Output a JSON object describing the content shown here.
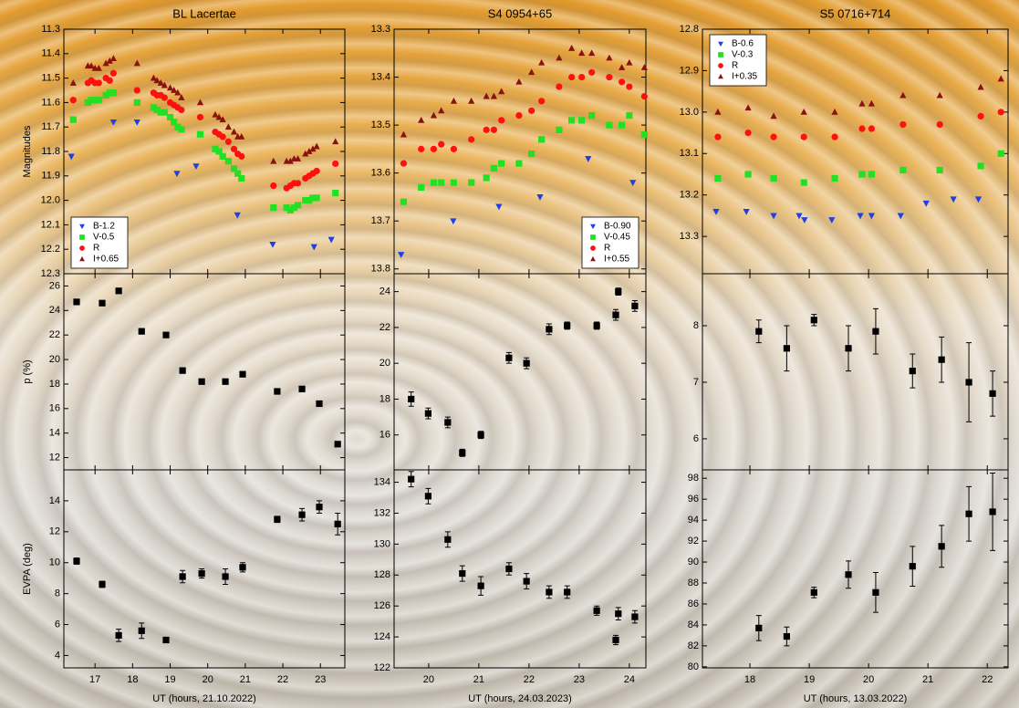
{
  "chart_data": [
    {
      "type": "scatter",
      "title": "BL Lacertae",
      "ylabel": "Magnitudes",
      "xlim": [
        16.17,
        23.65
      ],
      "xticks": [
        17,
        18,
        19,
        20,
        21,
        22,
        23
      ],
      "ylim": [
        12.3,
        11.3
      ],
      "yticks": [
        11.3,
        11.4,
        11.5,
        11.6,
        11.7,
        11.8,
        11.9,
        {
          "value": 12,
          "label": "12.0"
        },
        12.1,
        12.2,
        12.3
      ],
      "legend": "lower left",
      "series": [
        {
          "name": "B-1.2",
          "color": "#1f3fe0",
          "marker": "triangle-down",
          "x": [
            16.37,
            17.49,
            18.12,
            19.18,
            19.69,
            20.79,
            21.73,
            22.83,
            23.29
          ],
          "values": [
            11.82,
            11.68,
            11.68,
            11.89,
            11.86,
            12.06,
            12.18,
            12.19,
            12.16
          ]
        },
        {
          "name": "V-0.5",
          "color": "#22e022",
          "marker": "square",
          "x": [
            16.42,
            16.81,
            16.9,
            17.0,
            17.1,
            17.29,
            17.39,
            17.49,
            18.12,
            18.56,
            18.65,
            18.75,
            18.85,
            19.0,
            19.1,
            19.2,
            19.3,
            19.8,
            20.2,
            20.3,
            20.4,
            20.55,
            20.7,
            20.8,
            20.9,
            21.75,
            22.1,
            22.2,
            22.3,
            22.4,
            22.6,
            22.7,
            22.8,
            22.9,
            23.4
          ],
          "values": [
            11.67,
            11.6,
            11.59,
            11.59,
            11.59,
            11.57,
            11.56,
            11.56,
            11.6,
            11.62,
            11.63,
            11.64,
            11.64,
            11.66,
            11.68,
            11.7,
            11.71,
            11.73,
            11.79,
            11.8,
            11.82,
            11.84,
            11.87,
            11.89,
            11.91,
            12.03,
            12.03,
            12.04,
            12.03,
            12.02,
            12.0,
            12.0,
            11.99,
            11.99,
            11.97
          ]
        },
        {
          "name": "R",
          "color": "#ff1010",
          "marker": "circle",
          "x": [
            16.42,
            16.81,
            16.9,
            17.0,
            17.1,
            17.29,
            17.39,
            17.49,
            18.12,
            18.56,
            18.65,
            18.75,
            18.85,
            19.0,
            19.1,
            19.2,
            19.3,
            19.8,
            20.2,
            20.3,
            20.4,
            20.55,
            20.7,
            20.8,
            20.9,
            21.75,
            22.1,
            22.2,
            22.3,
            22.4,
            22.6,
            22.7,
            22.8,
            22.9,
            23.4
          ],
          "values": [
            11.59,
            11.52,
            11.51,
            11.52,
            11.52,
            11.5,
            11.51,
            11.48,
            11.55,
            11.56,
            11.57,
            11.57,
            11.58,
            11.6,
            11.61,
            11.62,
            11.63,
            11.66,
            11.72,
            11.73,
            11.74,
            11.76,
            11.79,
            11.81,
            11.82,
            11.94,
            11.95,
            11.94,
            11.93,
            11.93,
            11.91,
            11.9,
            11.89,
            11.88,
            11.85
          ]
        },
        {
          "name": "I+0.65",
          "color": "#8b1010",
          "marker": "triangle-up",
          "x": [
            16.42,
            16.81,
            16.9,
            17.0,
            17.1,
            17.29,
            17.39,
            17.49,
            18.12,
            18.56,
            18.65,
            18.75,
            18.85,
            19.0,
            19.1,
            19.2,
            19.3,
            19.8,
            20.2,
            20.3,
            20.4,
            20.55,
            20.7,
            20.8,
            20.9,
            21.75,
            22.1,
            22.2,
            22.3,
            22.4,
            22.6,
            22.7,
            22.8,
            22.9,
            23.4
          ],
          "values": [
            11.52,
            11.45,
            11.45,
            11.46,
            11.46,
            11.44,
            11.43,
            11.42,
            11.44,
            11.5,
            11.51,
            11.52,
            11.53,
            11.54,
            11.55,
            11.56,
            11.58,
            11.6,
            11.65,
            11.66,
            11.67,
            11.7,
            11.72,
            11.74,
            11.74,
            11.84,
            11.84,
            11.84,
            11.83,
            11.83,
            11.81,
            11.8,
            11.79,
            11.78,
            11.76
          ]
        }
      ]
    },
    {
      "type": "scatter",
      "title": "S4 0954+65",
      "xlim": [
        19.31,
        24.33
      ],
      "xticks": [
        20,
        21,
        22,
        23,
        24
      ],
      "ylim": [
        13.81,
        13.3
      ],
      "yticks": [
        13.3,
        13.4,
        13.5,
        13.6,
        13.7,
        13.8
      ],
      "legend": "lower right",
      "series": [
        {
          "name": "B-0.90",
          "color": "#1f3fe0",
          "marker": "triangle-down",
          "x": [
            19.45,
            20.49,
            21.4,
            22.22,
            23.18,
            24.07
          ],
          "values": [
            13.77,
            13.7,
            13.67,
            13.65,
            13.57,
            13.62
          ]
        },
        {
          "name": "V-0.45",
          "color": "#22e022",
          "marker": "square",
          "x": [
            19.5,
            19.85,
            20.1,
            20.25,
            20.5,
            20.85,
            21.15,
            21.3,
            21.45,
            21.8,
            22.05,
            22.25,
            22.6,
            22.85,
            23.05,
            23.25,
            23.6,
            23.85,
            24.0,
            24.3
          ],
          "values": [
            13.66,
            13.63,
            13.62,
            13.62,
            13.62,
            13.62,
            13.61,
            13.59,
            13.58,
            13.58,
            13.56,
            13.53,
            13.51,
            13.49,
            13.49,
            13.48,
            13.5,
            13.5,
            13.48,
            13.52
          ]
        },
        {
          "name": "R",
          "color": "#ff1010",
          "marker": "circle",
          "x": [
            19.5,
            19.85,
            20.1,
            20.25,
            20.5,
            20.85,
            21.15,
            21.3,
            21.45,
            21.8,
            22.05,
            22.25,
            22.6,
            22.85,
            23.05,
            23.25,
            23.6,
            23.85,
            24.0,
            24.3
          ],
          "values": [
            13.58,
            13.55,
            13.55,
            13.54,
            13.55,
            13.53,
            13.51,
            13.51,
            13.49,
            13.48,
            13.47,
            13.45,
            13.42,
            13.4,
            13.4,
            13.39,
            13.4,
            13.41,
            13.42,
            13.44
          ]
        },
        {
          "name": "I+0.55",
          "color": "#8b1010",
          "marker": "triangle-up",
          "x": [
            19.5,
            19.85,
            20.1,
            20.25,
            20.5,
            20.85,
            21.15,
            21.3,
            21.45,
            21.8,
            22.05,
            22.25,
            22.6,
            22.85,
            23.05,
            23.25,
            23.6,
            23.85,
            24.0,
            24.3
          ],
          "values": [
            13.52,
            13.49,
            13.48,
            13.47,
            13.45,
            13.45,
            13.44,
            13.44,
            13.43,
            13.41,
            13.39,
            13.37,
            13.36,
            13.34,
            13.35,
            13.35,
            13.36,
            13.38,
            13.37,
            13.38
          ]
        }
      ]
    },
    {
      "type": "scatter",
      "title": "S5 0716+714",
      "xlim": [
        17.2,
        22.35
      ],
      "xticks": [
        18,
        19,
        20,
        21,
        22
      ],
      "ylim": [
        13.39,
        12.8
      ],
      "yticks": [
        12.8,
        12.9,
        {
          "value": 13,
          "label": "13.0"
        },
        13.1,
        13.2,
        13.3
      ],
      "legend": "upper left",
      "series": [
        {
          "name": "B-0.6",
          "color": "#1f3fe0",
          "marker": "triangle-down",
          "x": [
            17.43,
            17.94,
            18.4,
            18.83,
            18.92,
            19.38,
            19.86,
            20.05,
            20.54,
            20.97,
            21.43,
            21.85
          ],
          "values": [
            13.24,
            13.24,
            13.25,
            13.25,
            13.26,
            13.26,
            13.25,
            13.25,
            13.25,
            13.22,
            13.21,
            13.21
          ]
        },
        {
          "name": "V-0.3",
          "color": "#22e022",
          "marker": "square",
          "x": [
            17.46,
            17.97,
            18.4,
            18.91,
            19.43,
            19.89,
            20.05,
            20.58,
            21.2,
            21.89,
            22.23
          ],
          "values": [
            13.16,
            13.15,
            13.16,
            13.17,
            13.16,
            13.15,
            13.15,
            13.14,
            13.14,
            13.13,
            13.1
          ]
        },
        {
          "name": "R",
          "color": "#ff1010",
          "marker": "circle",
          "x": [
            17.46,
            17.97,
            18.4,
            18.91,
            19.43,
            19.89,
            20.05,
            20.58,
            21.2,
            21.89,
            22.23
          ],
          "values": [
            13.06,
            13.05,
            13.06,
            13.06,
            13.06,
            13.04,
            13.04,
            13.03,
            13.03,
            13.01,
            13.0
          ]
        },
        {
          "name": "I+0.35",
          "color": "#8b1010",
          "marker": "triangle-up",
          "x": [
            17.46,
            17.97,
            18.4,
            18.91,
            19.43,
            19.89,
            20.05,
            20.58,
            21.2,
            21.89,
            22.23
          ],
          "values": [
            13.0,
            12.99,
            13.01,
            13.0,
            13.0,
            12.98,
            12.98,
            12.96,
            12.96,
            12.94,
            12.92
          ]
        }
      ]
    },
    {
      "type": "errorbar",
      "ylabel": "p (%)",
      "xlim": [
        16.17,
        23.65
      ],
      "xticks": [
        17,
        18,
        19,
        20,
        21,
        22,
        23
      ],
      "ylim": [
        11,
        27
      ],
      "yticks": [
        12,
        14,
        16,
        18,
        20,
        22,
        24,
        26
      ],
      "series": [
        {
          "color": "#000000",
          "marker": "square",
          "x": [
            16.51,
            17.19,
            17.63,
            18.24,
            18.89,
            19.33,
            19.84,
            20.47,
            20.93,
            21.85,
            22.51,
            22.97,
            23.46
          ],
          "values": [
            24.7,
            24.6,
            25.6,
            22.3,
            22.0,
            19.1,
            18.2,
            18.2,
            18.8,
            17.4,
            17.6,
            16.4,
            13.1
          ],
          "errors": [
            0.2,
            0.2,
            0.2,
            0.2,
            0.2,
            0.2,
            0.2,
            0.2,
            0.2,
            0.2,
            0.2,
            0.2,
            0.2
          ]
        }
      ]
    },
    {
      "type": "errorbar",
      "xlim": [
        19.31,
        24.33
      ],
      "xticks": [
        20,
        21,
        22,
        23,
        24
      ],
      "ylim": [
        14.05,
        25.0
      ],
      "yticks": [
        16,
        18,
        20,
        22,
        24
      ],
      "series": [
        {
          "color": "#000000",
          "marker": "square",
          "x": [
            19.65,
            19.99,
            20.38,
            20.67,
            21.04,
            21.6,
            21.95,
            22.4,
            22.76,
            23.35,
            23.73,
            23.78,
            24.11
          ],
          "values": [
            18.0,
            17.2,
            16.7,
            15.0,
            16.0,
            20.3,
            20.0,
            21.9,
            22.1,
            22.1,
            22.7,
            24.0,
            23.2
          ],
          "errors": [
            0.4,
            0.3,
            0.3,
            0.2,
            0.2,
            0.3,
            0.3,
            0.3,
            0.2,
            0.2,
            0.3,
            0.2,
            0.3
          ]
        }
      ]
    },
    {
      "type": "errorbar",
      "xlim": [
        17.2,
        22.35
      ],
      "xticks": [
        18,
        19,
        20,
        21,
        22
      ],
      "ylim": [
        5.45,
        8.92
      ],
      "yticks": [
        6,
        7,
        8
      ],
      "series": [
        {
          "color": "#000000",
          "marker": "square",
          "x": [
            18.15,
            18.62,
            19.08,
            19.66,
            20.12,
            20.74,
            21.23,
            21.69,
            22.09
          ],
          "values": [
            7.9,
            7.6,
            8.1,
            7.6,
            7.9,
            7.2,
            7.4,
            7.0,
            6.8
          ],
          "errors": [
            0.2,
            0.4,
            0.1,
            0.4,
            0.4,
            0.3,
            0.4,
            0.7,
            0.4
          ]
        }
      ]
    },
    {
      "type": "errorbar",
      "ylabel": "EVPA (deg)",
      "xlabel": "UT (hours, 21.10.2022)",
      "xlim": [
        16.17,
        23.65
      ],
      "xticks": [
        17,
        18,
        19,
        20,
        21,
        22,
        23
      ],
      "ylim": [
        3.2,
        16
      ],
      "yticks": [
        4,
        6,
        8,
        10,
        12,
        14
      ],
      "series": [
        {
          "color": "#000000",
          "marker": "square",
          "x": [
            16.51,
            17.19,
            17.63,
            18.24,
            18.89,
            19.33,
            19.84,
            20.47,
            20.93,
            21.85,
            22.51,
            22.97,
            23.46
          ],
          "values": [
            10.1,
            8.6,
            5.3,
            5.6,
            5.0,
            9.1,
            9.3,
            9.1,
            9.7,
            12.8,
            13.1,
            13.6,
            12.5
          ],
          "errors": [
            0.2,
            0.2,
            0.4,
            0.5,
            0.1,
            0.4,
            0.3,
            0.5,
            0.3,
            0.2,
            0.4,
            0.4,
            0.7
          ]
        }
      ]
    },
    {
      "type": "errorbar",
      "xlabel": "UT (hours, 24.03.2023)",
      "xlim": [
        19.31,
        24.33
      ],
      "xticks": [
        20,
        21,
        22,
        23,
        24
      ],
      "ylim": [
        122,
        134.8
      ],
      "yticks": [
        122,
        124,
        126,
        128,
        130,
        132,
        134
      ],
      "series": [
        {
          "color": "#000000",
          "marker": "square",
          "x": [
            19.65,
            19.99,
            20.38,
            20.67,
            21.04,
            21.6,
            21.95,
            22.4,
            22.76,
            23.35,
            23.73,
            23.78,
            24.11
          ],
          "values": [
            134.2,
            133.1,
            130.3,
            128.1,
            127.3,
            128.4,
            127.6,
            126.9,
            126.9,
            125.7,
            123.8,
            125.5,
            125.3
          ],
          "errors": [
            0.5,
            0.5,
            0.5,
            0.5,
            0.6,
            0.4,
            0.5,
            0.4,
            0.4,
            0.3,
            0.3,
            0.4,
            0.4
          ]
        }
      ]
    },
    {
      "type": "errorbar",
      "xlabel": "UT (hours, 13.03.2022)",
      "xlim": [
        17.2,
        22.35
      ],
      "xticks": [
        18,
        19,
        20,
        21,
        22
      ],
      "ylim": [
        79.9,
        98.8
      ],
      "yticks": [
        80,
        82,
        84,
        86,
        88,
        90,
        92,
        94,
        96,
        98
      ],
      "series": [
        {
          "color": "#000000",
          "marker": "square",
          "x": [
            18.15,
            18.62,
            19.08,
            19.66,
            20.12,
            20.74,
            21.23,
            21.69,
            22.09
          ],
          "values": [
            83.7,
            82.9,
            87.1,
            88.8,
            87.1,
            89.6,
            91.5,
            94.6,
            94.8
          ],
          "errors": [
            1.2,
            0.9,
            0.5,
            1.3,
            1.9,
            1.9,
            2.0,
            2.6,
            3.7
          ]
        }
      ]
    }
  ]
}
